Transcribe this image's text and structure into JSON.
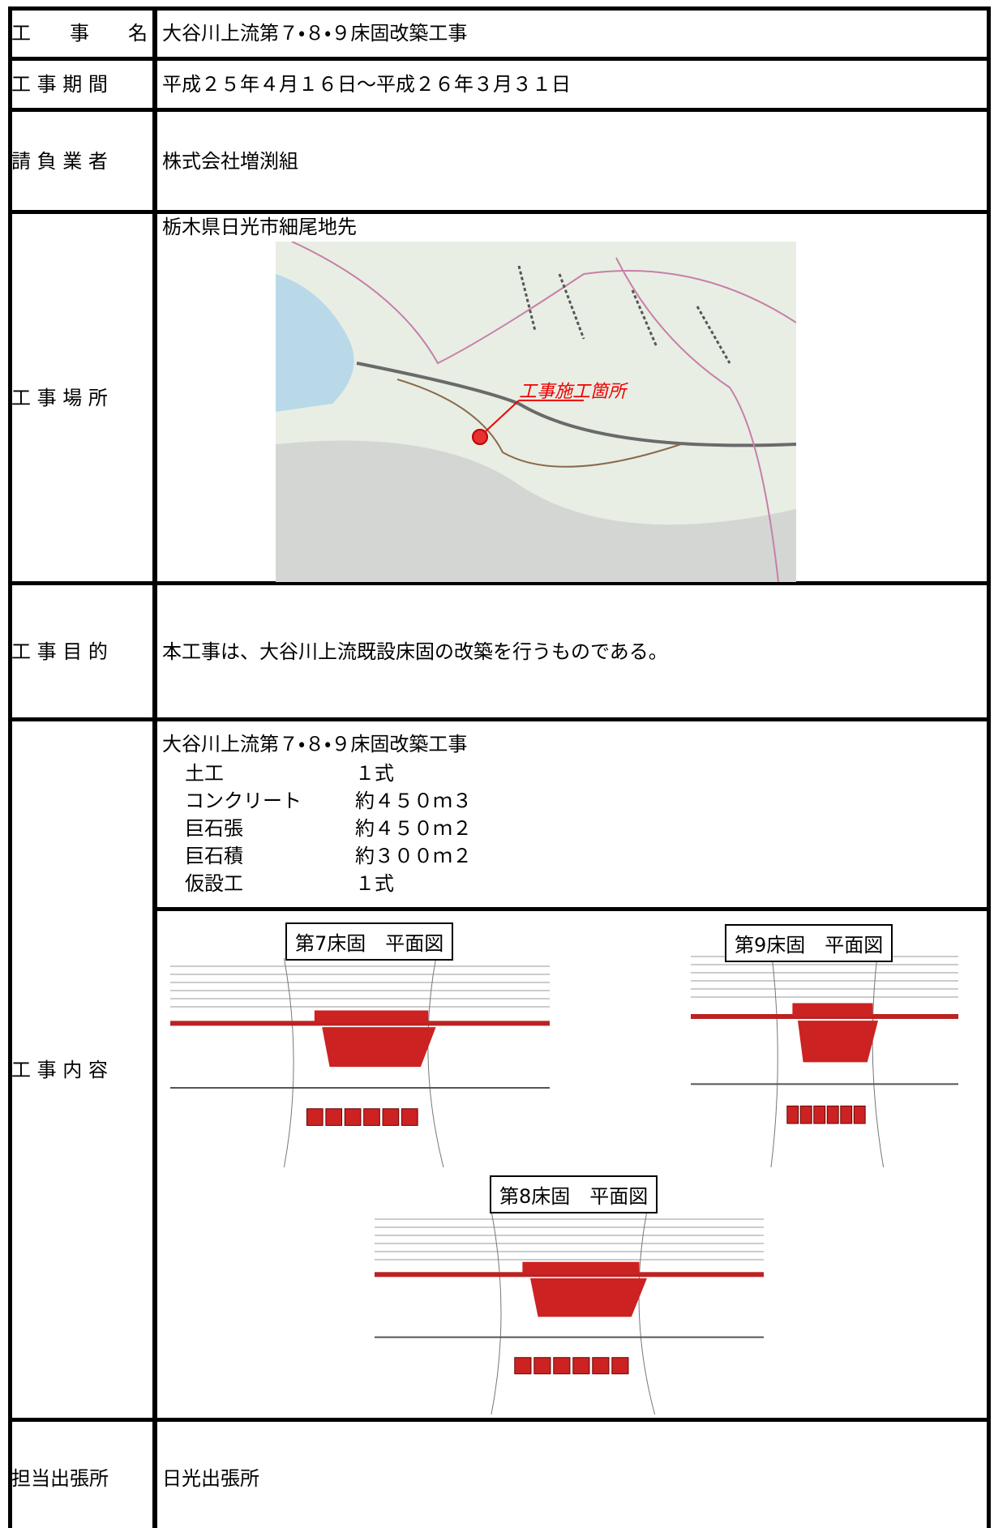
{
  "rows": [
    {
      "label": "工　　事　　名",
      "value": "大谷川上流第７・８・９床固改築工事"
    },
    {
      "label": "工 事 期 間",
      "value": "平成２５年４月１６日～平成２６年３月３１日"
    },
    {
      "label": "請 負 業 者",
      "value": "株式会社増渕組"
    }
  ],
  "location": {
    "label": "工 事 場 所",
    "value": "栃木県日光市細尾地先",
    "map_marker": "工事施工箇所"
  },
  "purpose": {
    "label": "工 事 目 的",
    "value": "本工事は、大谷川上流既設床固の改築を行うものである。"
  },
  "content": {
    "label": "工 事 内 容",
    "title": "大谷川上流第７・８・９床固改築工事",
    "items": [
      {
        "name": "土工",
        "quantity": "１式"
      },
      {
        "name": "コンクリート",
        "quantity": "約４５０ｍ３"
      },
      {
        "name": "巨石張",
        "quantity": "約４５０ｍ２"
      },
      {
        "name": "巨石積",
        "quantity": "約３００ｍ２"
      },
      {
        "name": "仮設工",
        "quantity": "１式"
      }
    ],
    "drawings": [
      "第7床固　平面図",
      "第9床固　平面図",
      "第8床固　平面図"
    ]
  },
  "office": {
    "label": "担当出張所",
    "value": "日光出張所"
  }
}
